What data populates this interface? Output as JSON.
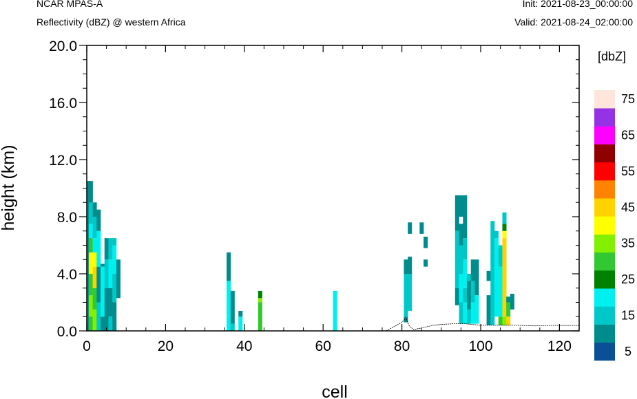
{
  "header": {
    "model": "NCAR MPAS-A",
    "field": "Reflectivity (dBZ) @ western Africa",
    "init": "Init: 2021-08-23_00:00:00",
    "valid": "Valid: 2021-08-24_02:00:00"
  },
  "chart_data": {
    "type": "heatmap",
    "xlabel": "cell",
    "ylabel": "height (km)",
    "xlim": [
      0,
      125
    ],
    "ylim": [
      0,
      20
    ],
    "xticks": [
      0,
      20,
      40,
      60,
      80,
      100,
      120
    ],
    "yticks": [
      0,
      4,
      8,
      12,
      16,
      20
    ],
    "ytick_labels": [
      "0.0",
      "4.0",
      "8.0",
      "12.0",
      "16.0",
      "20.0"
    ],
    "colorbar": {
      "title": "[dbZ]",
      "labels": [
        "5",
        "15",
        "25",
        "35",
        "45",
        "55",
        "65",
        "75"
      ],
      "colors": [
        "#0b4f96",
        "#008c8c",
        "#00c8c8",
        "#00f0f0",
        "#008200",
        "#32c832",
        "#82f000",
        "#ffff00",
        "#ffd200",
        "#ff8200",
        "#ff0000",
        "#900000",
        "#ff00ff",
        "#9632e6",
        "#ffe6dc"
      ]
    },
    "terrain": [
      [
        0,
        0
      ],
      [
        76,
        0
      ],
      [
        78,
        0.3
      ],
      [
        80,
        0.6
      ],
      [
        81,
        0.9
      ],
      [
        82,
        0.3
      ],
      [
        83,
        0.1
      ],
      [
        85,
        0.2
      ],
      [
        88,
        0.4
      ],
      [
        90,
        0.45
      ],
      [
        93,
        0.5
      ],
      [
        96,
        0.5
      ],
      [
        98,
        0.45
      ],
      [
        100,
        0.4
      ],
      [
        104,
        0.4
      ],
      [
        108,
        0.4
      ],
      [
        114,
        0.35
      ],
      [
        118,
        0.38
      ],
      [
        125,
        0.38
      ]
    ],
    "reflectivity_columns": [
      {
        "x": 0.5,
        "segments": [
          [
            0,
            10.5,
            1
          ],
          [
            10.5,
            10,
            1
          ]
        ]
      },
      {
        "x": 1,
        "segments": [
          [
            0,
            1,
            5
          ],
          [
            1,
            2.5,
            6
          ],
          [
            2.5,
            4,
            5
          ],
          [
            4,
            5.5,
            7
          ],
          [
            5.5,
            6.5,
            5
          ],
          [
            6.5,
            7.5,
            3
          ],
          [
            7.5,
            9,
            2
          ],
          [
            9,
            10.5,
            1
          ]
        ]
      },
      {
        "x": 2,
        "segments": [
          [
            0,
            1.5,
            6
          ],
          [
            1.5,
            3,
            5
          ],
          [
            3,
            4.5,
            8
          ],
          [
            4.5,
            5.5,
            7
          ],
          [
            5.5,
            6.5,
            3
          ],
          [
            6.5,
            8,
            2
          ],
          [
            8,
            9,
            1
          ]
        ]
      },
      {
        "x": 3,
        "segments": [
          [
            0,
            2,
            2
          ],
          [
            2,
            4.5,
            1
          ],
          [
            4.5,
            7,
            3
          ],
          [
            7,
            8.5,
            1
          ]
        ]
      },
      {
        "x": 4,
        "segments": [
          [
            0,
            1,
            1
          ],
          [
            1,
            4.5,
            3
          ],
          [
            4.5,
            4.7,
            1
          ]
        ]
      },
      {
        "x": 5,
        "segments": [
          [
            0,
            3,
            1
          ],
          [
            3,
            5,
            2
          ],
          [
            5,
            6.5,
            1
          ]
        ]
      },
      {
        "x": 6,
        "segments": [
          [
            0,
            1,
            2
          ],
          [
            1,
            3,
            1
          ],
          [
            3,
            5,
            3
          ],
          [
            5,
            6.5,
            2
          ]
        ]
      },
      {
        "x": 7,
        "segments": [
          [
            0,
            2,
            1
          ],
          [
            2,
            4,
            2
          ],
          [
            4,
            6,
            3
          ],
          [
            6,
            6.5,
            2
          ]
        ]
      },
      {
        "x": 8,
        "segments": [
          [
            2.3,
            5,
            1
          ]
        ]
      },
      {
        "x": 36,
        "segments": [
          [
            0,
            1,
            3
          ],
          [
            1,
            3.5,
            3
          ],
          [
            3.5,
            5.5,
            1
          ]
        ]
      },
      {
        "x": 37,
        "segments": [
          [
            0,
            0.5,
            2
          ],
          [
            0.5,
            2,
            1
          ],
          [
            2,
            2.8,
            1
          ]
        ]
      },
      {
        "x": 39,
        "segments": [
          [
            0,
            1,
            3
          ],
          [
            1,
            1.4,
            1
          ]
        ]
      },
      {
        "x": 44,
        "segments": [
          [
            0,
            2,
            5
          ],
          [
            2,
            2.3,
            6
          ],
          [
            2.3,
            2.8,
            4
          ]
        ]
      },
      {
        "x": 63,
        "segments": [
          [
            0,
            2.8,
            3
          ]
        ]
      },
      {
        "x": 81,
        "segments": [
          [
            0.6,
            1,
            1
          ],
          [
            1,
            4,
            2
          ],
          [
            4,
            5,
            1
          ]
        ]
      },
      {
        "x": 82,
        "segments": [
          [
            1.4,
            4,
            2
          ],
          [
            4,
            5.2,
            1
          ],
          [
            6.8,
            7.6,
            1
          ]
        ]
      },
      {
        "x": 85,
        "segments": [
          [
            6.8,
            7.6,
            1
          ]
        ]
      },
      {
        "x": 86,
        "segments": [
          [
            4.5,
            5,
            1
          ],
          [
            5.8,
            6.6,
            1
          ]
        ]
      },
      {
        "x": 94,
        "segments": [
          [
            1.8,
            3,
            1
          ],
          [
            3,
            7,
            2
          ],
          [
            7,
            9.5,
            1
          ]
        ]
      },
      {
        "x": 95,
        "segments": [
          [
            0.5,
            2,
            2
          ],
          [
            2,
            4,
            3
          ],
          [
            4,
            6,
            2
          ],
          [
            6,
            7.5,
            1
          ],
          [
            8,
            9.5,
            1
          ]
        ]
      },
      {
        "x": 96,
        "segments": [
          [
            0.5,
            2,
            3
          ],
          [
            2,
            3,
            2
          ],
          [
            3,
            5,
            3
          ],
          [
            5,
            6.5,
            2
          ],
          [
            6.5,
            9.5,
            1
          ]
        ]
      },
      {
        "x": 97,
        "segments": [
          [
            0.5,
            1.5,
            2
          ],
          [
            1.5,
            3.5,
            1
          ],
          [
            3.5,
            4,
            2
          ]
        ]
      },
      {
        "x": 98,
        "segments": [
          [
            0.5,
            2,
            3
          ],
          [
            2,
            3.5,
            2
          ],
          [
            3.5,
            5,
            1
          ]
        ]
      },
      {
        "x": 99,
        "segments": [
          [
            0.5,
            2.5,
            3
          ],
          [
            2.5,
            5,
            1
          ]
        ]
      },
      {
        "x": 102,
        "segments": [
          [
            0.4,
            2.5,
            1
          ],
          [
            3.5,
            4.2,
            1
          ]
        ]
      },
      {
        "x": 103,
        "segments": [
          [
            0.4,
            1,
            2
          ],
          [
            1,
            5.5,
            2
          ],
          [
            5.5,
            7.7,
            2
          ]
        ]
      },
      {
        "x": 104,
        "segments": [
          [
            1,
            6.5,
            3
          ],
          [
            6.5,
            7,
            2
          ]
        ]
      },
      {
        "x": 105,
        "segments": [
          [
            0.4,
            1,
            5
          ],
          [
            1,
            4.5,
            3
          ],
          [
            4.5,
            6,
            2
          ]
        ]
      },
      {
        "x": 106,
        "segments": [
          [
            0.4,
            1,
            6
          ],
          [
            1,
            3,
            8
          ],
          [
            3,
            6.5,
            8
          ],
          [
            6.5,
            7,
            7
          ],
          [
            7,
            7.5,
            4
          ],
          [
            7.5,
            8.3,
            2
          ]
        ]
      },
      {
        "x": 107,
        "segments": [
          [
            0.4,
            1,
            8
          ],
          [
            1,
            2,
            5
          ],
          [
            2,
            2.4,
            1
          ]
        ]
      },
      {
        "x": 108,
        "segments": [
          [
            1.5,
            2.6,
            1
          ]
        ]
      }
    ]
  }
}
